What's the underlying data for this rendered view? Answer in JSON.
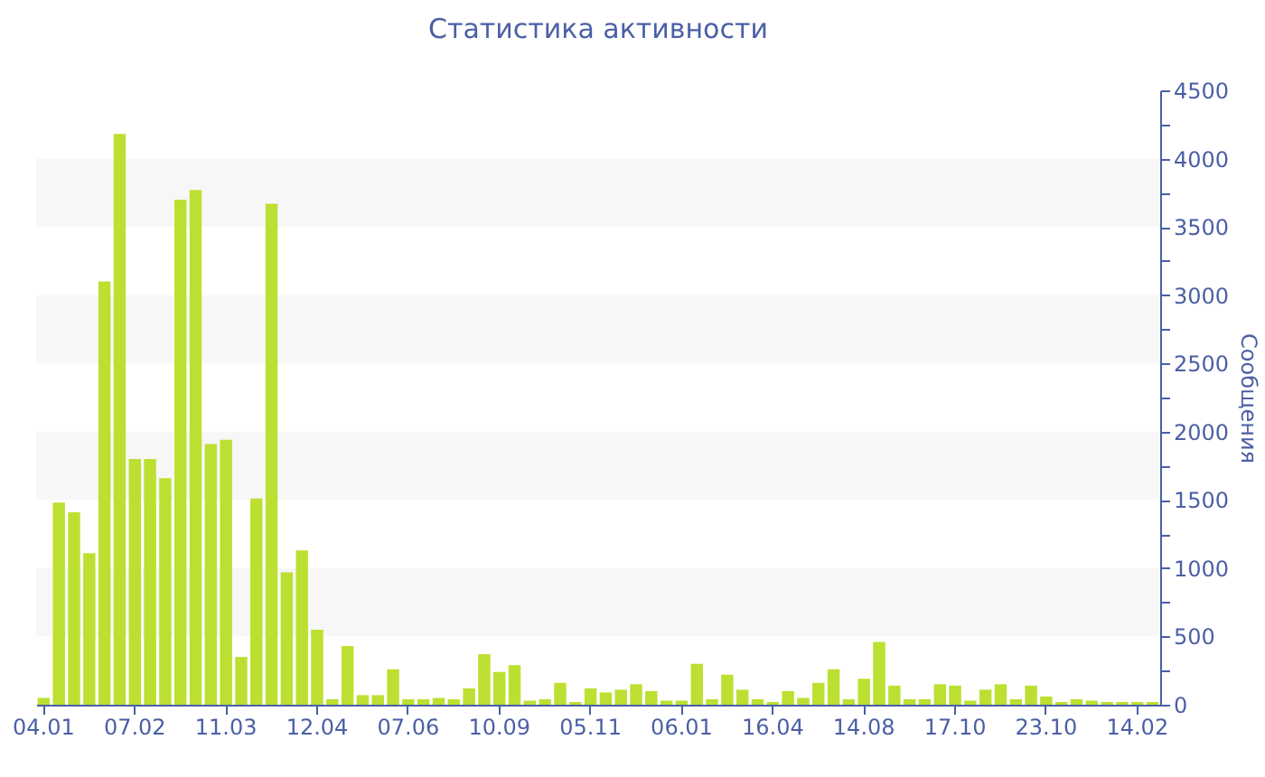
{
  "chart_data": {
    "type": "bar",
    "title": "Статистика активности",
    "ylabel": "Сообщения",
    "categories": [
      "04.01",
      null,
      null,
      null,
      null,
      null,
      "07.02",
      null,
      null,
      null,
      null,
      null,
      "11.03",
      null,
      null,
      null,
      null,
      null,
      "12.04",
      null,
      null,
      null,
      null,
      null,
      "07.06",
      null,
      null,
      null,
      null,
      null,
      "10.09",
      null,
      null,
      null,
      null,
      null,
      "05.11",
      null,
      null,
      null,
      null,
      null,
      "06.01",
      null,
      null,
      null,
      null,
      null,
      "16.04",
      null,
      null,
      null,
      null,
      null,
      "14.08",
      null,
      null,
      null,
      null,
      null,
      "17.10",
      null,
      null,
      null,
      null,
      null,
      "23.10",
      null,
      null,
      null,
      null,
      null,
      "14.02",
      null
    ],
    "values": [
      50,
      1480,
      1410,
      1110,
      3100,
      4180,
      1800,
      1800,
      1660,
      3700,
      3770,
      1910,
      1940,
      350,
      1510,
      3670,
      970,
      1130,
      550,
      40,
      430,
      70,
      70,
      260,
      40,
      40,
      50,
      40,
      120,
      370,
      240,
      290,
      30,
      40,
      160,
      20,
      120,
      90,
      110,
      150,
      100,
      30,
      30,
      300,
      40,
      220,
      110,
      40,
      20,
      100,
      50,
      160,
      260,
      40,
      190,
      460,
      140,
      40,
      40,
      150,
      140,
      30,
      110,
      150,
      40,
      140,
      60,
      20,
      40,
      30,
      20,
      20,
      20,
      20
    ],
    "color": "#bce032",
    "ylim": [
      0,
      4500
    ],
    "yticks": [
      0,
      {
        "value": 250,
        "label": null
      },
      500,
      {
        "value": 750,
        "label": null
      },
      1000,
      {
        "value": 1250,
        "label": null
      },
      1500,
      {
        "value": 1750,
        "label": null
      },
      2000,
      {
        "value": 2250,
        "label": null
      },
      2500,
      {
        "value": 2750,
        "label": null
      },
      3000,
      {
        "value": 3250,
        "label": null
      },
      3500,
      {
        "value": 3750,
        "label": null
      },
      4000,
      {
        "value": 4250,
        "label": null
      },
      4500
    ],
    "bands": [
      {
        "axis": "y",
        "from": 500,
        "to": 1000,
        "color": "#f7f7f7"
      },
      {
        "axis": "y",
        "from": 1500,
        "to": 2000,
        "color": "#f7f7f7"
      },
      {
        "axis": "y",
        "from": 2500,
        "to": 3000,
        "color": "#f7f7f7"
      },
      {
        "axis": "y",
        "from": 3500,
        "to": 4000,
        "color": "#f7f7f7"
      }
    ]
  }
}
